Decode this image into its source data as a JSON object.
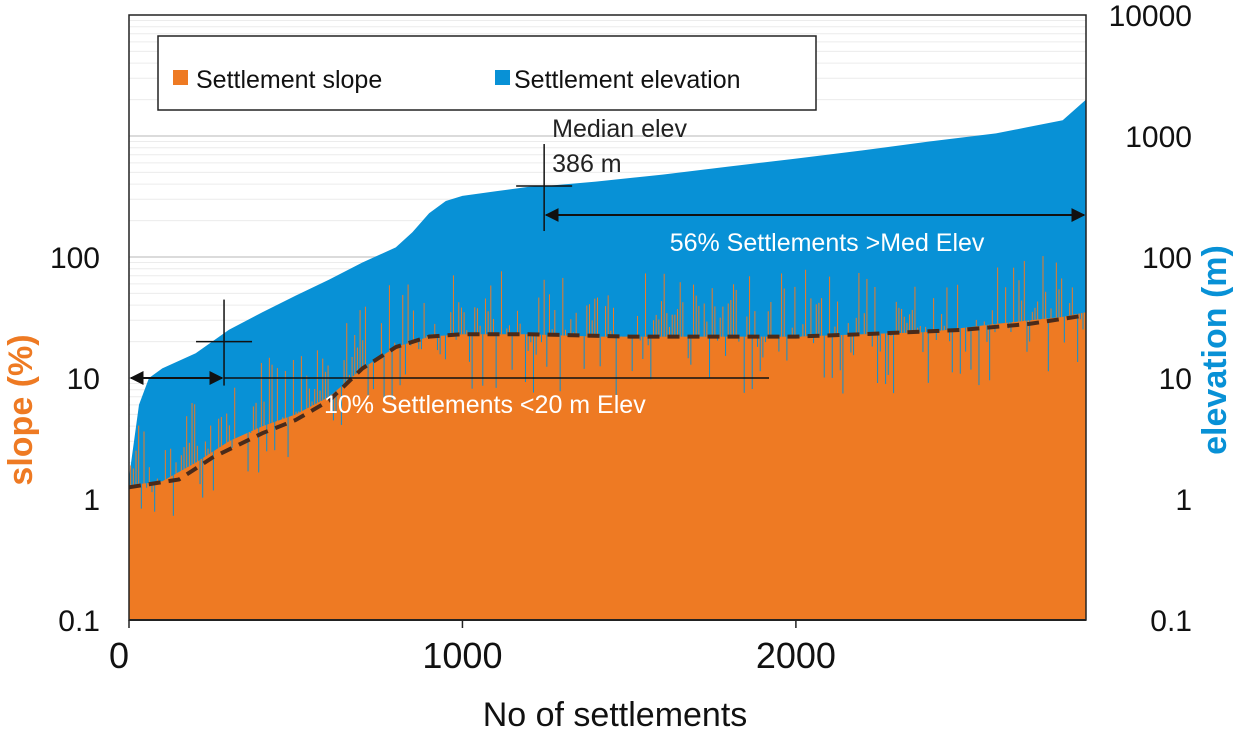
{
  "chart_data": {
    "type": "bar",
    "title": "",
    "xlabel": "No of settlements",
    "ylabel_left": "slope (%)",
    "ylabel_right": "elevation (m)",
    "xlim": [
      0,
      2870
    ],
    "ylim_left": [
      0.1,
      10000
    ],
    "ylim_right": [
      0.1,
      10000
    ],
    "yscale": "log",
    "x_ticks": [
      "0",
      "1000",
      "2000"
    ],
    "y_ticks_left": [
      "0.1",
      "1",
      "10",
      "100"
    ],
    "y_ticks_right": [
      "0.1",
      "1",
      "10",
      "100",
      "1000",
      "10000"
    ],
    "grid": "horizontal",
    "legend_position": "top-left",
    "series": [
      {
        "name": "Settlement elevation",
        "color": "#0891d6",
        "points": [
          [
            0,
            1.5
          ],
          [
            30,
            6
          ],
          [
            60,
            10
          ],
          [
            100,
            12
          ],
          [
            200,
            16
          ],
          [
            300,
            25
          ],
          [
            400,
            35
          ],
          [
            500,
            48
          ],
          [
            600,
            65
          ],
          [
            700,
            90
          ],
          [
            800,
            120
          ],
          [
            850,
            160
          ],
          [
            900,
            230
          ],
          [
            950,
            290
          ],
          [
            1000,
            320
          ],
          [
            1100,
            350
          ],
          [
            1200,
            380
          ],
          [
            1250,
            386
          ],
          [
            1400,
            420
          ],
          [
            1600,
            480
          ],
          [
            1800,
            560
          ],
          [
            2000,
            650
          ],
          [
            2200,
            760
          ],
          [
            2400,
            900
          ],
          [
            2600,
            1050
          ],
          [
            2800,
            1350
          ],
          [
            2870,
            2000
          ]
        ]
      },
      {
        "name": "Settlement slope",
        "color": "#ee7a23",
        "points": [
          [
            0,
            1.3
          ],
          [
            100,
            1.4
          ],
          [
            200,
            2
          ],
          [
            300,
            3
          ],
          [
            400,
            4
          ],
          [
            500,
            5
          ],
          [
            600,
            7
          ],
          [
            700,
            12
          ],
          [
            800,
            18
          ],
          [
            900,
            22
          ],
          [
            1000,
            23
          ],
          [
            1200,
            23
          ],
          [
            1400,
            22
          ],
          [
            1600,
            22
          ],
          [
            1800,
            22
          ],
          [
            2000,
            22
          ],
          [
            2200,
            23
          ],
          [
            2400,
            24
          ],
          [
            2600,
            28
          ],
          [
            2800,
            32
          ],
          [
            2870,
            35
          ]
        ]
      }
    ],
    "trend": {
      "name": "slope trend",
      "color": "#4a2a1a",
      "points": [
        [
          0,
          1.25
        ],
        [
          150,
          1.45
        ],
        [
          250,
          2.2
        ],
        [
          400,
          3.5
        ],
        [
          500,
          4.5
        ],
        [
          600,
          6.5
        ],
        [
          700,
          12
        ],
        [
          800,
          18
        ],
        [
          900,
          22
        ],
        [
          1000,
          23
        ],
        [
          1200,
          23
        ],
        [
          1500,
          22
        ],
        [
          2000,
          22
        ],
        [
          2200,
          23
        ],
        [
          2500,
          25
        ],
        [
          2700,
          28
        ],
        [
          2870,
          33
        ]
      ]
    },
    "annotations": {
      "median_label_1": "Median elev",
      "median_label_2": "386 m",
      "median_x": 1245,
      "median_value": 386,
      "upper_arrow_text": "56% Settlements >Med Elev",
      "lower_arrow_text": "10% Settlements <20 m Elev",
      "low_marker_x": 285,
      "low_marker_value": 20
    },
    "legend": {
      "slope_label": "Settlement slope",
      "elevation_label": "Settlement elevation"
    }
  }
}
